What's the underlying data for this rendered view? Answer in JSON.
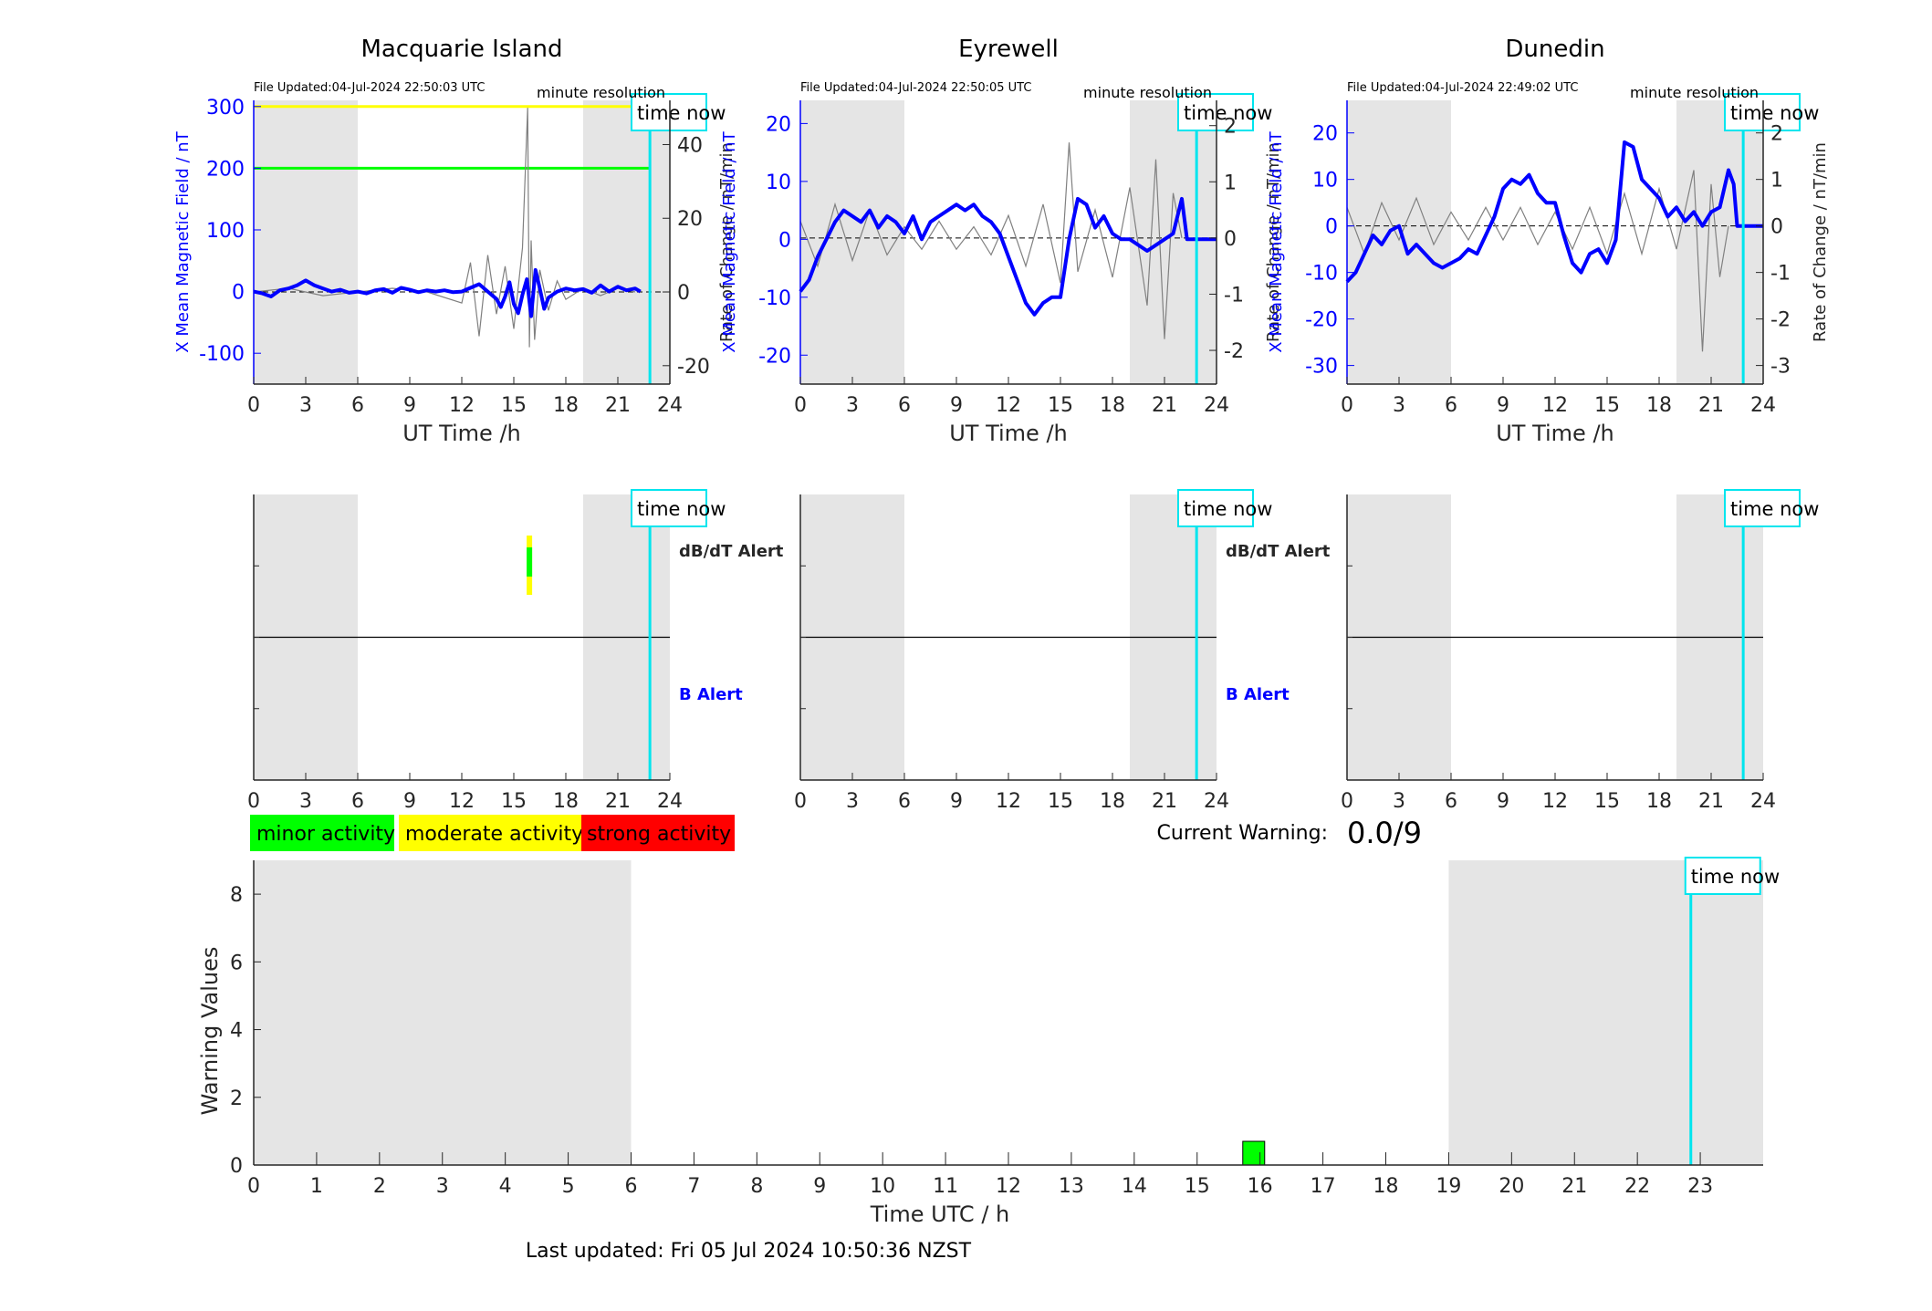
{
  "page": {
    "current_warning_label": "Current Warning:",
    "current_warning_value": "0.0/9",
    "last_updated": "Last updated: Fri 05 Jul 2024 10:50:36 NZST",
    "time_now_label": "time now",
    "resolution_label": "minute resolution",
    "dbdt_alert_label": "dB/dT Alert",
    "b_alert_label": "B Alert"
  },
  "legend": {
    "items": [
      {
        "label": "minor activity",
        "color": "#00ff00"
      },
      {
        "label": "moderate activity",
        "color": "#ffff00"
      },
      {
        "label": "strong activity",
        "color": "#ff0000"
      }
    ]
  },
  "colors": {
    "field_line": "#0000ff",
    "rate_line": "#808080",
    "time_now": "#00e5ee",
    "shade": "#e5e5e5",
    "threshold_300": "#ffff00",
    "threshold_200": "#00ff00"
  },
  "chart_data": [
    {
      "type": "line",
      "title": "Macquarie Island",
      "file_updated": "File Updated:04-Jul-2024 22:50:03 UTC",
      "xlabel": "UT Time /h",
      "ylabel_left": "X Mean Magnetic Field / nT",
      "ylabel_right": "Rate of Change / nT/min",
      "xlim": [
        0,
        24
      ],
      "xticks": [
        0,
        3,
        6,
        9,
        12,
        15,
        18,
        21,
        24
      ],
      "ylim_left": [
        -150,
        310
      ],
      "yticks_left": [
        -100,
        0,
        100,
        200,
        300
      ],
      "ylim_right": [
        -25,
        52
      ],
      "yticks_right": [
        -20,
        0,
        20,
        40
      ],
      "shaded_x": [
        [
          0,
          6
        ],
        [
          19,
          24
        ]
      ],
      "time_now": 22.85,
      "thresholds": [
        {
          "y": 300,
          "color": "#ffff00"
        },
        {
          "y": 200,
          "color": "#00ff00"
        }
      ],
      "series": [
        {
          "axis": "left",
          "x": [
            0,
            0.5,
            1,
            1.5,
            2,
            2.5,
            3,
            3.5,
            4,
            4.5,
            5,
            5.5,
            6,
            6.5,
            7,
            7.5,
            8,
            8.5,
            9,
            9.5,
            10,
            10.5,
            11,
            11.5,
            12,
            12.5,
            13,
            13.5,
            14,
            14.25,
            14.5,
            14.75,
            15,
            15.25,
            15.5,
            15.75,
            16,
            16.25,
            16.5,
            16.75,
            17,
            17.5,
            18,
            18.5,
            19,
            19.5,
            20,
            20.5,
            21,
            21.5,
            22,
            22.3
          ],
          "values": [
            0,
            -3,
            -8,
            2,
            5,
            10,
            18,
            10,
            5,
            0,
            3,
            -2,
            0,
            -3,
            2,
            4,
            -2,
            6,
            3,
            -1,
            2,
            0,
            2,
            -1,
            0,
            6,
            12,
            0,
            -12,
            -25,
            -8,
            15,
            -20,
            -35,
            -5,
            20,
            -40,
            35,
            5,
            -28,
            -10,
            0,
            5,
            2,
            4,
            -2,
            10,
            0,
            8,
            2,
            5,
            0
          ]
        },
        {
          "axis": "right",
          "x": [
            0,
            2,
            4,
            6,
            8,
            10,
            12,
            12.5,
            13,
            13.5,
            14,
            14.5,
            15,
            15.5,
            15.8,
            15.9,
            16,
            16.2,
            16.5,
            17,
            17.5,
            18,
            19,
            20,
            21,
            22
          ],
          "values": [
            0,
            1,
            -1,
            0,
            1,
            0,
            -3,
            8,
            -12,
            10,
            -6,
            7,
            -10,
            12,
            50,
            -15,
            14,
            -13,
            6,
            -5,
            3,
            -2,
            1,
            -1,
            1,
            0
          ]
        }
      ]
    },
    {
      "type": "line",
      "title": "Eyrewell",
      "file_updated": "File Updated:04-Jul-2024 22:50:05 UTC",
      "xlabel": "UT Time /h",
      "ylabel_left": "X Mean Magnetic Field / nT",
      "ylabel_right": "Rate of Change / nT/min",
      "xlim": [
        0,
        24
      ],
      "xticks": [
        0,
        3,
        6,
        9,
        12,
        15,
        18,
        21,
        24
      ],
      "ylim_left": [
        -25,
        24
      ],
      "yticks_left": [
        -20,
        -10,
        0,
        10,
        20
      ],
      "ylim_right": [
        -2.6,
        2.45
      ],
      "yticks_right": [
        -2,
        -1,
        0,
        1,
        2
      ],
      "shaded_x": [
        [
          0,
          6
        ],
        [
          19,
          24
        ]
      ],
      "time_now": 22.85,
      "thresholds": [],
      "series": [
        {
          "axis": "left",
          "x": [
            0,
            0.5,
            1,
            1.5,
            2,
            2.5,
            3,
            3.5,
            4,
            4.5,
            5,
            5.5,
            6,
            6.5,
            7,
            7.5,
            8,
            8.5,
            9,
            9.5,
            10,
            10.5,
            11,
            11.5,
            12,
            12.5,
            13,
            13.5,
            14,
            14.5,
            15,
            15.5,
            16,
            16.5,
            17,
            17.5,
            18,
            18.5,
            19,
            19.5,
            20,
            20.5,
            21,
            21.5,
            22,
            22.3,
            22.5,
            24
          ],
          "values": [
            -9,
            -7,
            -3,
            0,
            3,
            5,
            4,
            3,
            5,
            2,
            4,
            3,
            1,
            4,
            0,
            3,
            4,
            5,
            6,
            5,
            6,
            4,
            3,
            1,
            -3,
            -7,
            -11,
            -13,
            -11,
            -10,
            -10,
            0,
            7,
            6,
            2,
            4,
            1,
            0,
            0,
            -1,
            -2,
            -1,
            0,
            1,
            7,
            0,
            0,
            0
          ]
        },
        {
          "axis": "right",
          "x": [
            0,
            1,
            2,
            3,
            4,
            5,
            6,
            7,
            8,
            9,
            10,
            11,
            12,
            13,
            14,
            15,
            15.5,
            16,
            17,
            18,
            19,
            20,
            20.5,
            21,
            21.5,
            22
          ],
          "values": [
            0.3,
            -0.5,
            0.6,
            -0.4,
            0.5,
            -0.3,
            0.2,
            -0.2,
            0.3,
            -0.2,
            0.2,
            -0.3,
            0.4,
            -0.5,
            0.6,
            -0.8,
            1.7,
            -0.6,
            0.5,
            -0.7,
            0.9,
            -1.2,
            1.4,
            -1.8,
            0.8,
            0
          ]
        }
      ]
    },
    {
      "type": "line",
      "title": "Dunedin",
      "file_updated": "File Updated:04-Jul-2024 22:49:02 UTC",
      "xlabel": "UT Time /h",
      "ylabel_left": "X Mean Magnetic Field / nT",
      "ylabel_right": "Rate of Change / nT/min",
      "xlim": [
        0,
        24
      ],
      "xticks": [
        0,
        3,
        6,
        9,
        12,
        15,
        18,
        21,
        24
      ],
      "ylim_left": [
        -34,
        27
      ],
      "yticks_left": [
        -30,
        -20,
        -10,
        0,
        10,
        20
      ],
      "ylim_right": [
        -3.4,
        2.7
      ],
      "yticks_right": [
        -3,
        -2,
        -1,
        0,
        1,
        2
      ],
      "shaded_x": [
        [
          0,
          6
        ],
        [
          19,
          24
        ]
      ],
      "time_now": 22.85,
      "thresholds": [],
      "series": [
        {
          "axis": "left",
          "x": [
            0,
            0.5,
            1,
            1.5,
            2,
            2.5,
            3,
            3.5,
            4,
            4.5,
            5,
            5.5,
            6,
            6.5,
            7,
            7.5,
            8,
            8.5,
            9,
            9.5,
            10,
            10.5,
            11,
            11.5,
            12,
            12.5,
            13,
            13.5,
            14,
            14.5,
            15,
            15.5,
            16,
            16.5,
            17,
            17.5,
            18,
            18.5,
            19,
            19.5,
            20,
            20.5,
            21,
            21.5,
            22,
            22.3,
            22.5,
            24
          ],
          "values": [
            -12,
            -10,
            -6,
            -2,
            -4,
            -1,
            0,
            -6,
            -4,
            -6,
            -8,
            -9,
            -8,
            -7,
            -5,
            -6,
            -2,
            2,
            8,
            10,
            9,
            11,
            7,
            5,
            5,
            -2,
            -8,
            -10,
            -6,
            -5,
            -8,
            -3,
            18,
            17,
            10,
            8,
            6,
            2,
            4,
            1,
            3,
            0,
            3,
            4,
            12,
            9,
            0,
            0
          ]
        },
        {
          "axis": "right",
          "x": [
            0,
            1,
            2,
            3,
            4,
            5,
            6,
            7,
            8,
            9,
            10,
            11,
            12,
            13,
            14,
            15,
            16,
            17,
            18,
            19,
            20,
            20.5,
            21,
            21.5,
            22
          ],
          "values": [
            0.4,
            -0.6,
            0.5,
            -0.3,
            0.6,
            -0.4,
            0.3,
            -0.3,
            0.4,
            -0.3,
            0.4,
            -0.4,
            0.3,
            -0.5,
            0.4,
            -0.6,
            0.7,
            -0.6,
            0.8,
            -0.5,
            1.2,
            -2.7,
            0.9,
            -1.1,
            0
          ]
        }
      ]
    },
    {
      "type": "bar",
      "title": "",
      "xlabel": "",
      "xlim": [
        0,
        24
      ],
      "xticks": [
        0,
        3,
        6,
        9,
        12,
        15,
        18,
        21,
        24
      ],
      "shaded_x": [
        [
          0,
          6
        ],
        [
          19,
          24
        ]
      ],
      "time_now": 22.85,
      "right_labels": [
        "dB/dT Alert",
        "B Alert"
      ],
      "alerts": [
        {
          "x": 15.9,
          "band": "dB/dT",
          "color": "#00ff00"
        }
      ]
    },
    {
      "type": "bar",
      "title": "",
      "xlabel": "",
      "xlim": [
        0,
        24
      ],
      "xticks": [
        0,
        3,
        6,
        9,
        12,
        15,
        18,
        21,
        24
      ],
      "shaded_x": [
        [
          0,
          6
        ],
        [
          19,
          24
        ]
      ],
      "time_now": 22.85,
      "right_labels": [
        "dB/dT Alert",
        "B Alert"
      ],
      "alerts": []
    },
    {
      "type": "bar",
      "title": "",
      "xlabel": "",
      "xlim": [
        0,
        24
      ],
      "xticks": [
        0,
        3,
        6,
        9,
        12,
        15,
        18,
        21,
        24
      ],
      "shaded_x": [
        [
          0,
          6
        ],
        [
          19,
          24
        ]
      ],
      "time_now": 22.85,
      "right_labels": [],
      "alerts": []
    },
    {
      "type": "bar",
      "title": "",
      "xlabel": "Time UTC / h",
      "ylabel": "Warning Values",
      "xlim": [
        0,
        24
      ],
      "xticks": [
        0,
        1,
        2,
        3,
        4,
        5,
        6,
        7,
        8,
        9,
        10,
        11,
        12,
        13,
        14,
        15,
        16,
        17,
        18,
        19,
        20,
        21,
        22,
        23
      ],
      "ylim": [
        0,
        9
      ],
      "yticks": [
        0,
        2,
        4,
        6,
        8
      ],
      "shaded_x": [
        [
          0,
          6
        ],
        [
          19,
          24
        ]
      ],
      "time_now": 22.85,
      "bars": [
        {
          "x": 15.9,
          "value": 0.7,
          "color": "#00ff00"
        }
      ]
    }
  ]
}
